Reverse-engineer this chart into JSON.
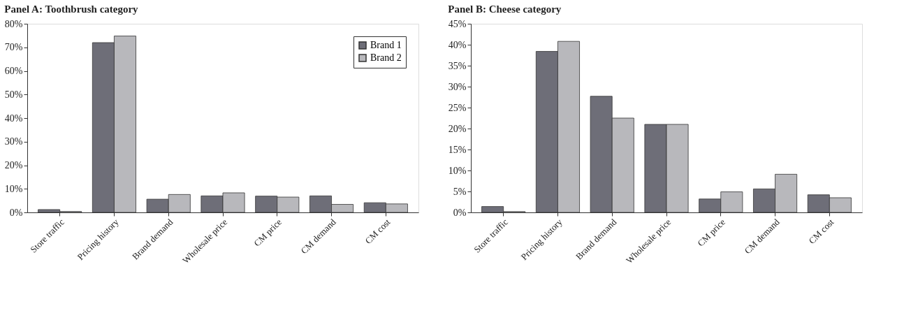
{
  "chart_data": [
    {
      "type": "bar",
      "title": "Panel A: Toothbrush category",
      "categories": [
        "Store traffic",
        "Pricing history",
        "Brand demand",
        "Wholesale price",
        "CM price",
        "CM demand",
        "CM cost"
      ],
      "series": [
        {
          "name": "Brand 1",
          "color": "#6e6e78",
          "values": [
            1.2,
            72,
            5.6,
            7.0,
            6.9,
            7.0,
            4.1
          ]
        },
        {
          "name": "Brand 2",
          "color": "#b8b8bc",
          "values": [
            0.4,
            74.8,
            7.6,
            8.3,
            6.5,
            3.4,
            3.6
          ]
        }
      ],
      "ylim": [
        0,
        80
      ],
      "yticks": [
        {
          "value": 0,
          "label": "0%"
        },
        {
          "value": 10,
          "label": "10%"
        },
        {
          "value": 20,
          "label": "20%"
        },
        {
          "value": 30,
          "label": "30%"
        },
        {
          "value": 40,
          "label": "40%"
        },
        {
          "value": 50,
          "label": "50%"
        },
        {
          "value": 60,
          "label": "60%"
        },
        {
          "value": 70,
          "label": "70%"
        },
        {
          "value": 80,
          "label": "80%"
        }
      ],
      "grid": false,
      "legend": "top right"
    },
    {
      "type": "bar",
      "title": "Panel B: Cheese category",
      "categories": [
        "Store traffic",
        "Pricing history",
        "Brand demand",
        "Wholesale price",
        "CM price",
        "CM demand",
        "CM cost"
      ],
      "series": [
        {
          "color": "#6e6e78",
          "values": [
            1.4,
            38.4,
            27.7,
            21.0,
            3.2,
            5.6,
            4.2
          ]
        },
        {
          "color": "#b8b8bc",
          "values": [
            0.2,
            40.8,
            22.5,
            21.0,
            4.9,
            9.1,
            3.5
          ]
        }
      ],
      "ylim": [
        0,
        45
      ],
      "yticks": [
        {
          "value": 0,
          "label": "0%"
        },
        {
          "value": 5,
          "label": "5%"
        },
        {
          "value": 10,
          "label": "10%"
        },
        {
          "value": 15,
          "label": "15%"
        },
        {
          "value": 20,
          "label": "20%"
        },
        {
          "value": 25,
          "label": "25%"
        },
        {
          "value": 30,
          "label": "30%"
        },
        {
          "value": 35,
          "label": "35%"
        },
        {
          "value": 40,
          "label": "40%"
        },
        {
          "value": 45,
          "label": "45%"
        }
      ],
      "grid": false,
      "legend": false
    }
  ]
}
